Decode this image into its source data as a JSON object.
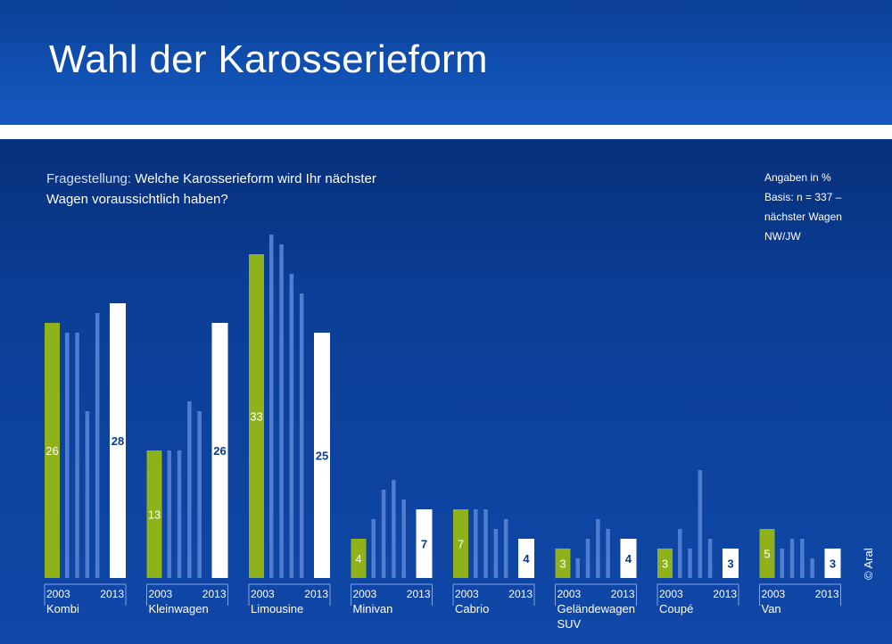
{
  "title": "Wahl der Karosserieform",
  "question": {
    "label": "Fragestellung:",
    "text": "Welche Karosserieform wird Ihr nächster Wagen voraussichtlich haben?"
  },
  "note": {
    "line1": "Angaben in %",
    "line2": "Basis: n = 337 –",
    "line3": "nächster Wagen",
    "line4": "NW/JW"
  },
  "copyright": "© Aral",
  "colors": {
    "first_year": "#8fb21a",
    "intermediate": "#4f7ed0",
    "last_year": "#ffffff",
    "last_value_text": "#0b3b8f"
  },
  "chart_data": {
    "type": "bar",
    "title": "Wahl der Karosserieform",
    "unit": "%",
    "years_shown": [
      "2003",
      "2013"
    ],
    "categories": [
      {
        "label": "Kombi",
        "values": [
          26,
          25,
          25,
          17,
          27,
          28
        ]
      },
      {
        "label": "Kleinwagen",
        "values": [
          13,
          13,
          13,
          18,
          17,
          26
        ]
      },
      {
        "label": "Limousine",
        "values": [
          33,
          35,
          34,
          31,
          29,
          25
        ]
      },
      {
        "label": "Minivan",
        "values": [
          4,
          6,
          9,
          10,
          8,
          7
        ]
      },
      {
        "label": "Cabrio",
        "values": [
          7,
          7,
          7,
          5,
          6,
          4
        ]
      },
      {
        "label": "Geländewagen SUV",
        "label_lines": [
          "Geländewagen",
          "SUV"
        ],
        "values": [
          3,
          2,
          4,
          6,
          5,
          4
        ]
      },
      {
        "label": "Coupé",
        "values": [
          3,
          5,
          3,
          11,
          4,
          3
        ]
      },
      {
        "label": "Van",
        "values": [
          5,
          3,
          4,
          4,
          2,
          3
        ]
      }
    ]
  }
}
